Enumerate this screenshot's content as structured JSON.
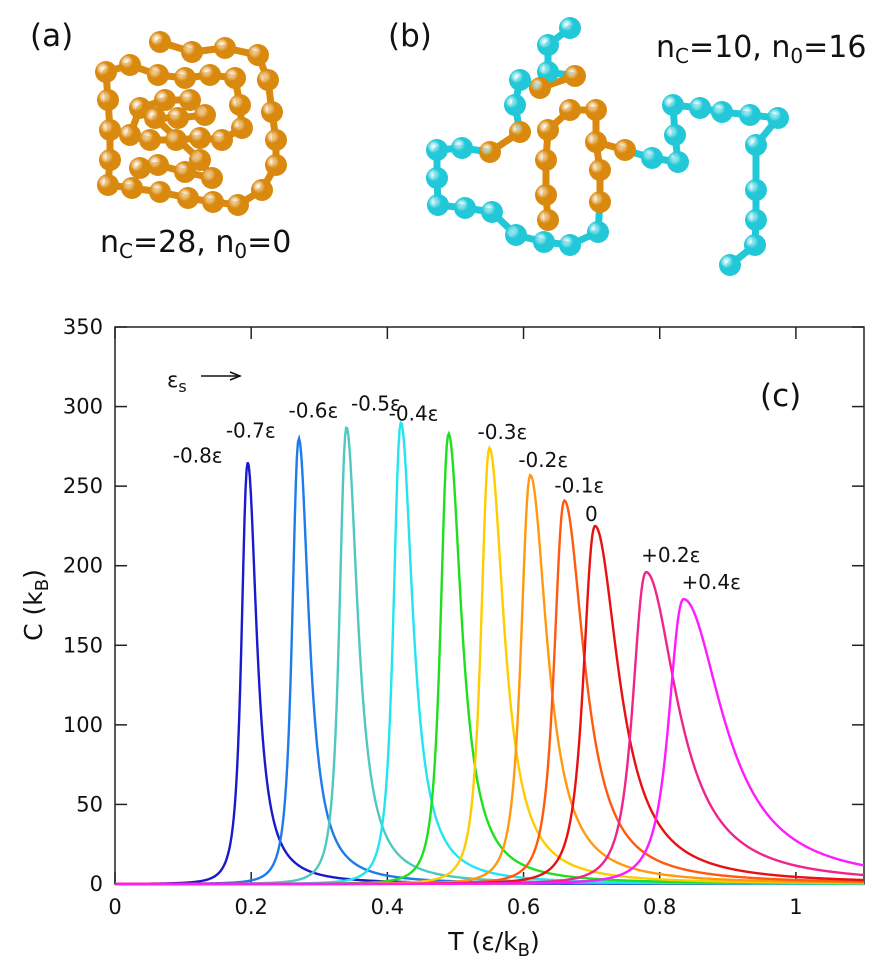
{
  "panels": {
    "a": {
      "label": "(a)",
      "nc_label": "n",
      "nc_sub": "C",
      "nc_value": "=28, n",
      "n0_sub": "0",
      "n0_value": "=0",
      "bead_color": "#d9890e"
    },
    "b": {
      "label": "(b)",
      "nc_label": "n",
      "nc_sub": "C",
      "nc_value": "=10, n",
      "n0_sub": "0",
      "n0_value": "=16",
      "contact_color": "#d9890e",
      "noncontact_color": "#22c8d8"
    }
  },
  "chart_data": {
    "type": "line",
    "panel_label": "(c)",
    "xlabel": "T (ε/k",
    "xlabel_sub": "B",
    "xlabel_end": ")",
    "ylabel": "C (k",
    "ylabel_sub": "B",
    "ylabel_end": ")",
    "xlim": [
      0,
      1.1
    ],
    "ylim": [
      0,
      350
    ],
    "xticks": [
      0,
      0.2,
      0.4,
      0.6,
      0.8,
      1
    ],
    "xtick_labels": [
      "0",
      "0.2",
      "0.4",
      "0.6",
      "0.8",
      "1"
    ],
    "yticks": [
      0,
      50,
      100,
      150,
      200,
      250,
      300,
      350
    ],
    "ytick_labels": [
      "0",
      "50",
      "100",
      "150",
      "200",
      "250",
      "300",
      "350"
    ],
    "arrow_label": "ε",
    "arrow_label_sub": "s",
    "series": [
      {
        "name": "-0.8ε",
        "peak_T": 0.195,
        "peak_C": 265,
        "width_left": 0.014,
        "width_right": 0.016,
        "color": "#1a1acd"
      },
      {
        "name": "-0.7ε",
        "peak_T": 0.27,
        "peak_C": 280,
        "width_left": 0.015,
        "width_right": 0.018,
        "color": "#1e7bea"
      },
      {
        "name": "-0.6ε",
        "peak_T": 0.34,
        "peak_C": 287,
        "width_left": 0.016,
        "width_right": 0.02,
        "color": "#4fc8c0"
      },
      {
        "name": "-0.5ε",
        "peak_T": 0.42,
        "peak_C": 290,
        "width_left": 0.017,
        "width_right": 0.021,
        "color": "#22e5f0"
      },
      {
        "name": "-0.4ε",
        "peak_T": 0.49,
        "peak_C": 283,
        "width_left": 0.018,
        "width_right": 0.023,
        "color": "#1ee01e"
      },
      {
        "name": "-0.3ε",
        "peak_T": 0.55,
        "peak_C": 274,
        "width_left": 0.019,
        "width_right": 0.026,
        "color": "#ffcc00"
      },
      {
        "name": "-0.2ε",
        "peak_T": 0.61,
        "peak_C": 257,
        "width_left": 0.021,
        "width_right": 0.03,
        "color": "#ff9a10"
      },
      {
        "name": "-0.1ε",
        "peak_T": 0.66,
        "peak_C": 241,
        "width_left": 0.023,
        "width_right": 0.035,
        "color": "#ff5a10"
      },
      {
        "name": "0",
        "peak_T": 0.705,
        "peak_C": 225,
        "width_left": 0.026,
        "width_right": 0.042,
        "color": "#e81010"
      },
      {
        "name": "+0.2ε",
        "peak_T": 0.78,
        "peak_C": 196,
        "width_left": 0.03,
        "width_right": 0.055,
        "color": "#f0258a"
      },
      {
        "name": "+0.4ε",
        "peak_T": 0.835,
        "peak_C": 179,
        "width_left": 0.033,
        "width_right": 0.07,
        "color": "#ff1aff"
      }
    ]
  }
}
